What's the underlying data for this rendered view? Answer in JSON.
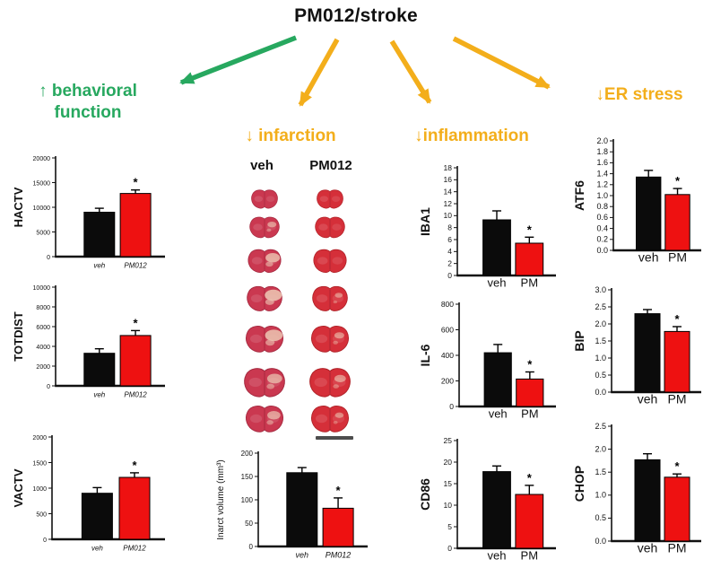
{
  "title": "PM012/stroke",
  "sig_marker": "*",
  "colors": {
    "black_bar": "#0b0b0b",
    "red_bar": "#ee1111",
    "green": "#27a85f",
    "yellow": "#f3ae1b",
    "axis": "#111111",
    "brain_veh": "#ca3850",
    "brain_pm": "#d52f39",
    "infarct_pale": "#ecc7b3",
    "scale_bar": "#4d4d4d"
  },
  "headings": {
    "behavioral": {
      "line1": "↑ behavioral",
      "line2": "function"
    },
    "infarction": "↓ infarction",
    "inflammation": "↓inflammation",
    "er_stress": "↓ER stress"
  },
  "infarction_panel": {
    "veh_label": "veh",
    "pm_label": "PM012",
    "rows": 7,
    "columns": [
      "veh",
      "PM012"
    ]
  },
  "chart_data": [
    {
      "id": "hactv",
      "type": "bar",
      "ylabel": "HACTV",
      "categories": [
        "veh",
        "PM012"
      ],
      "values": [
        9000,
        12800
      ],
      "errors": [
        800,
        700
      ],
      "sig": [
        false,
        true
      ],
      "ylim": [
        0,
        20000
      ],
      "yticks": [
        0,
        5000,
        10000,
        15000,
        20000
      ],
      "ytick_labels": [
        "0",
        "5000",
        "10000",
        "15000",
        "20000"
      ]
    },
    {
      "id": "totdist",
      "type": "bar",
      "ylabel": "TOTDIST",
      "categories": [
        "veh",
        "PM012"
      ],
      "values": [
        3300,
        5100
      ],
      "errors": [
        450,
        500
      ],
      "sig": [
        false,
        true
      ],
      "ylim": [
        0,
        10000
      ],
      "yticks": [
        0,
        2000,
        4000,
        6000,
        8000,
        10000
      ],
      "ytick_labels": [
        "0",
        "2000",
        "4000",
        "6000",
        "8000",
        "10000"
      ]
    },
    {
      "id": "vactv",
      "type": "bar",
      "ylabel": "VACTV",
      "categories": [
        "veh",
        "PM012"
      ],
      "values": [
        900,
        1210
      ],
      "errors": [
        110,
        90
      ],
      "sig": [
        false,
        true
      ],
      "ylim": [
        0,
        2000
      ],
      "yticks": [
        0,
        500,
        1000,
        1500,
        2000
      ],
      "ytick_labels": [
        "0",
        "500",
        "1000",
        "1500",
        "2000"
      ]
    },
    {
      "id": "infarct",
      "type": "bar",
      "ylabel": "Inarct volume (mm³)",
      "categories": [
        "veh",
        "PM012"
      ],
      "values": [
        158,
        82
      ],
      "errors": [
        11,
        22
      ],
      "sig": [
        false,
        true
      ],
      "ylim": [
        0,
        200
      ],
      "yticks": [
        0,
        50,
        100,
        150,
        200
      ],
      "ytick_labels": [
        "0",
        "50",
        "100",
        "150",
        "200"
      ]
    },
    {
      "id": "iba1",
      "type": "bar",
      "ylabel": "IBA1",
      "categories": [
        "veh",
        "PM"
      ],
      "values": [
        9.3,
        5.4
      ],
      "errors": [
        1.5,
        1.0
      ],
      "sig": [
        false,
        true
      ],
      "ylim": [
        0,
        18
      ],
      "yticks": [
        0,
        2,
        4,
        6,
        8,
        10,
        12,
        14,
        16,
        18
      ],
      "ytick_labels": [
        "0",
        "2",
        "4",
        "6",
        "8",
        "10",
        "12",
        "14",
        "16",
        "18"
      ]
    },
    {
      "id": "il6",
      "type": "bar",
      "ylabel": "IL-6",
      "categories": [
        "veh",
        "PM"
      ],
      "values": [
        420,
        215
      ],
      "errors": [
        65,
        55
      ],
      "sig": [
        false,
        true
      ],
      "ylim": [
        0,
        800
      ],
      "yticks": [
        0,
        200,
        400,
        600,
        800
      ],
      "ytick_labels": [
        "0",
        "200",
        "400",
        "600",
        "800"
      ]
    },
    {
      "id": "cd86",
      "type": "bar",
      "ylabel": "CD86",
      "categories": [
        "veh",
        "PM"
      ],
      "values": [
        17.8,
        12.5
      ],
      "errors": [
        1.3,
        2.1
      ],
      "sig": [
        false,
        true
      ],
      "ylim": [
        0,
        25
      ],
      "yticks": [
        0,
        5,
        10,
        15,
        20,
        25
      ],
      "ytick_labels": [
        "0",
        "5",
        "10",
        "15",
        "20",
        "25"
      ]
    },
    {
      "id": "atf6",
      "type": "bar",
      "ylabel": "ATF6",
      "categories": [
        "veh",
        "PM"
      ],
      "values": [
        1.34,
        1.02
      ],
      "errors": [
        0.12,
        0.11
      ],
      "sig": [
        false,
        true
      ],
      "ylim": [
        0,
        2.0
      ],
      "yticks": [
        0,
        0.2,
        0.4,
        0.6,
        0.8,
        1.0,
        1.2,
        1.4,
        1.6,
        1.8,
        2.0
      ],
      "ytick_labels": [
        "0.0",
        "0.2",
        "0.4",
        "0.6",
        "0.8",
        "1.0",
        "1.2",
        "1.4",
        "1.6",
        "1.8",
        "2.0"
      ]
    },
    {
      "id": "bip",
      "type": "bar",
      "ylabel": "BIP",
      "categories": [
        "veh",
        "PM"
      ],
      "values": [
        2.3,
        1.78
      ],
      "errors": [
        0.12,
        0.14
      ],
      "sig": [
        false,
        true
      ],
      "ylim": [
        0,
        3.0
      ],
      "yticks": [
        0,
        0.5,
        1.0,
        1.5,
        2.0,
        2.5,
        3.0
      ],
      "ytick_labels": [
        "0.0",
        "0.5",
        "1.0",
        "1.5",
        "2.0",
        "2.5",
        "3.0"
      ]
    },
    {
      "id": "chop",
      "type": "bar",
      "ylabel": "CHOP",
      "categories": [
        "veh",
        "PM"
      ],
      "values": [
        1.77,
        1.39
      ],
      "errors": [
        0.13,
        0.07
      ],
      "sig": [
        false,
        true
      ],
      "ylim": [
        0,
        2.5
      ],
      "yticks": [
        0,
        0.5,
        1.0,
        1.5,
        2.0,
        2.5
      ],
      "ytick_labels": [
        "0.0",
        "0.5",
        "1.0",
        "1.5",
        "2.0",
        "2.5"
      ]
    }
  ]
}
